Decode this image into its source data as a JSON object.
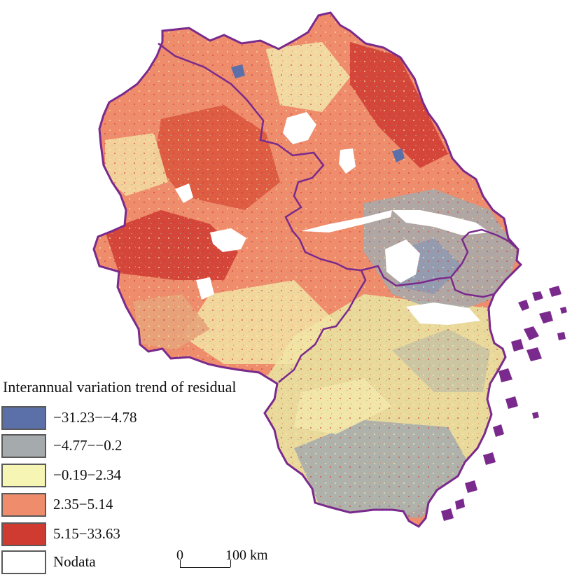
{
  "legend": {
    "title": "Interannual variation trend of residual",
    "items": [
      {
        "label": "−31.23−−4.78",
        "color": "#5b6fa8"
      },
      {
        "label": "−4.77−−0.2",
        "color": "#a5aaad"
      },
      {
        "label": "−0.19−2.34",
        "color": "#f7f5b3"
      },
      {
        "label": "2.35−5.14",
        "color": "#ee8c6c"
      },
      {
        "label": "5.15−33.63",
        "color": "#cf3a31"
      },
      {
        "label": "Nodata",
        "color": "#ffffff"
      }
    ]
  },
  "scale_bar": {
    "start_label": "0",
    "end_label": "100 km"
  },
  "colors": {
    "boundary": "#7a2a8c",
    "water": "#ffffff"
  }
}
